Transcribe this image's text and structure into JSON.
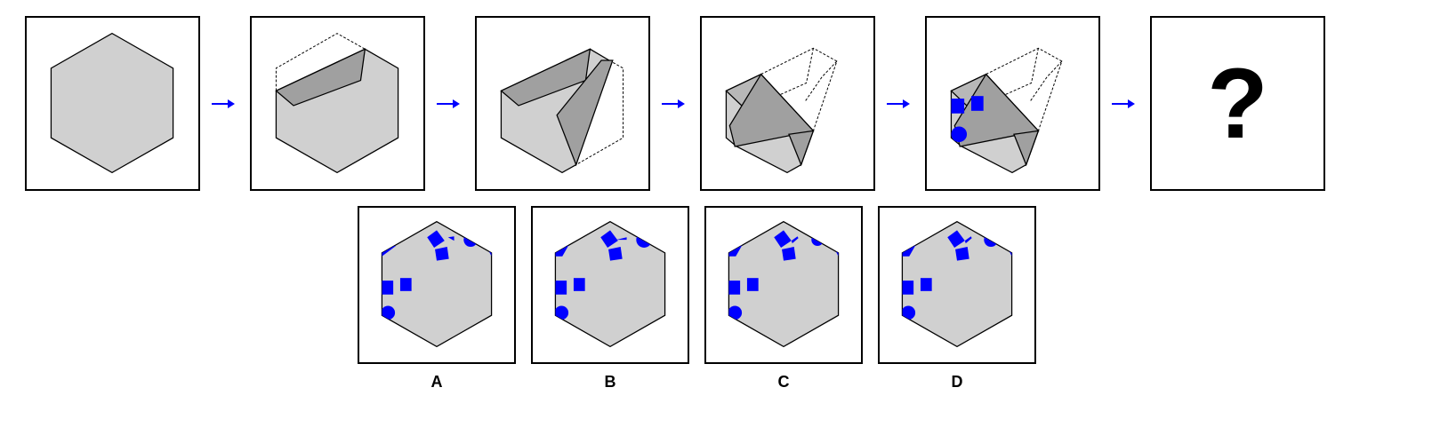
{
  "puzzle": {
    "sequence": [
      {
        "step": 1
      },
      {
        "step": 2
      },
      {
        "step": 3
      },
      {
        "step": 4
      },
      {
        "step": 5
      },
      {
        "step": 6,
        "unknown": "?"
      }
    ],
    "options": [
      {
        "label": "A"
      },
      {
        "label": "B"
      },
      {
        "label": "C"
      },
      {
        "label": "D"
      }
    ]
  },
  "colors": {
    "paper": "#d0d0d0",
    "fold": "#a0a0a0",
    "mark": "#0000ff",
    "arrow": "#0000ff",
    "outline": "#000000"
  }
}
